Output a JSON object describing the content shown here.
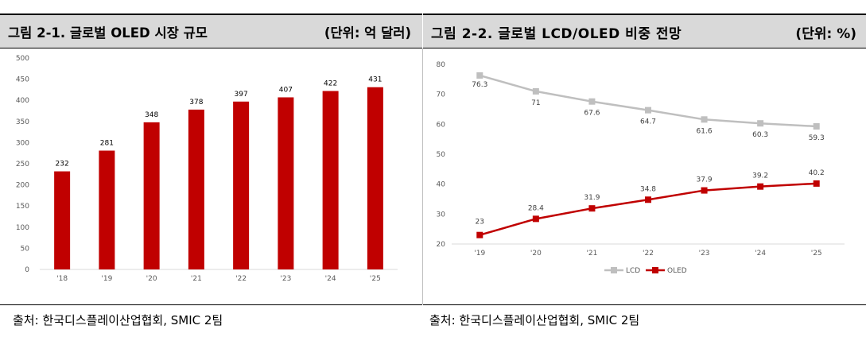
{
  "left": {
    "title": "그림 2-1. 글로벌 OLED 시장 규모",
    "unit": "(단위: 억 달러)",
    "source": "출처: 한국디스플레이산업협회, SMIC 2팀"
  },
  "right": {
    "title": "그림 2-2. 글로벌 LCD/OLED 비중 전망",
    "unit": "(단위: %)",
    "source": "출처: 한국디스플레이산업협회, SMIC 2팀"
  },
  "colors": {
    "bar": "#c00000",
    "lcd": "#bfbfbf",
    "oled": "#c00000"
  },
  "chart_data": [
    {
      "type": "bar",
      "categories": [
        "'18",
        "'19",
        "'20",
        "'21",
        "'22",
        "'23",
        "'24",
        "'25"
      ],
      "values": [
        232,
        281,
        348,
        378,
        397,
        407,
        422,
        431
      ],
      "ylim": [
        0,
        500
      ],
      "yticks": [
        0,
        50,
        100,
        150,
        200,
        250,
        300,
        350,
        400,
        450,
        500
      ],
      "grid": false
    },
    {
      "type": "line",
      "categories": [
        "'19",
        "'20",
        "'21",
        "'22",
        "'23",
        "'24",
        "'25"
      ],
      "series": [
        {
          "name": "LCD",
          "values": [
            76.3,
            71,
            67.6,
            64.7,
            61.6,
            60.3,
            59.3
          ]
        },
        {
          "name": "OLED",
          "values": [
            23,
            28.4,
            31.9,
            34.8,
            37.9,
            39.2,
            40.2
          ]
        }
      ],
      "ylim": [
        20,
        80
      ],
      "yticks": [
        20,
        30,
        40,
        50,
        60,
        70,
        80
      ],
      "legend": "bottom",
      "grid": false
    }
  ]
}
